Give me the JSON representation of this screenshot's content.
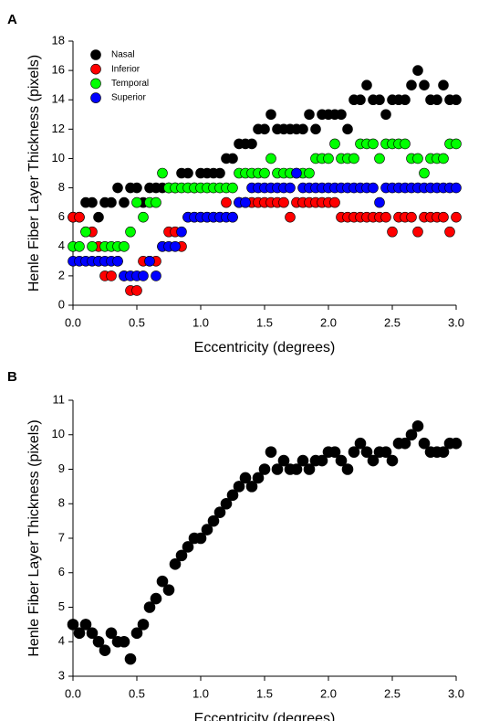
{
  "chart_data": [
    {
      "type": "scatter",
      "panel_label": "A",
      "xlabel": "Eccentricity (degrees)",
      "ylabel": "Henle Fiber Layer Thickness (pixels)",
      "xlim": [
        0,
        3
      ],
      "ylim": [
        0,
        18
      ],
      "xticks": [
        {
          "value": 0,
          "label": "0.0"
        },
        {
          "value": 0.5,
          "label": "0.5"
        },
        {
          "value": 1,
          "label": "1.0"
        },
        {
          "value": 1.5,
          "label": "1.5"
        },
        {
          "value": 2,
          "label": "2.0"
        },
        {
          "value": 2.5,
          "label": "2.5"
        },
        {
          "value": 3,
          "label": "3.0"
        }
      ],
      "yticks": [
        0,
        2,
        4,
        6,
        8,
        10,
        12,
        14,
        16,
        18
      ],
      "legend": "upper left",
      "x": [
        0,
        0.05,
        0.1,
        0.15,
        0.2,
        0.25,
        0.3,
        0.35,
        0.4,
        0.45,
        0.5,
        0.55,
        0.6,
        0.65,
        0.7,
        0.75,
        0.8,
        0.85,
        0.9,
        0.95,
        1,
        1.05,
        1.1,
        1.15,
        1.2,
        1.25,
        1.3,
        1.35,
        1.4,
        1.45,
        1.5,
        1.55,
        1.6,
        1.65,
        1.7,
        1.75,
        1.8,
        1.85,
        1.9,
        1.95,
        2,
        2.05,
        2.1,
        2.15,
        2.2,
        2.25,
        2.3,
        2.35,
        2.4,
        2.45,
        2.5,
        2.55,
        2.6,
        2.65,
        2.7,
        2.75,
        2.8,
        2.85,
        2.9,
        2.95,
        3
      ],
      "series": [
        {
          "name": "Nasal",
          "color": "#000000",
          "values": [
            6,
            6,
            7,
            7,
            6,
            7,
            7,
            8,
            7,
            8,
            8,
            7,
            8,
            8,
            8,
            8,
            8,
            9,
            9,
            8,
            9,
            9,
            9,
            9,
            10,
            10,
            11,
            11,
            11,
            12,
            12,
            13,
            12,
            12,
            12,
            12,
            12,
            13,
            12,
            13,
            13,
            13,
            13,
            12,
            14,
            14,
            15,
            14,
            14,
            13,
            14,
            14,
            14,
            15,
            16,
            15,
            14,
            14,
            15,
            14,
            14
          ]
        },
        {
          "name": "Inferior",
          "color": "#ff0000",
          "values": [
            6,
            6,
            5,
            5,
            4,
            2,
            2,
            3,
            2,
            1,
            1,
            3,
            3,
            3,
            4,
            5,
            5,
            4,
            6,
            6,
            6,
            6,
            6,
            6,
            7,
            6,
            7,
            7,
            7,
            7,
            7,
            7,
            7,
            7,
            6,
            7,
            7,
            7,
            7,
            7,
            7,
            7,
            6,
            6,
            6,
            6,
            6,
            6,
            6,
            6,
            5,
            6,
            6,
            6,
            5,
            6,
            6,
            6,
            6,
            5,
            6
          ]
        },
        {
          "name": "Temporal",
          "color": "#00ff00",
          "values": [
            4,
            4,
            5,
            4,
            3,
            4,
            4,
            4,
            4,
            5,
            7,
            6,
            7,
            7,
            9,
            8,
            8,
            8,
            8,
            8,
            8,
            8,
            8,
            8,
            8,
            8,
            9,
            9,
            9,
            9,
            9,
            10,
            9,
            9,
            9,
            9,
            9,
            9,
            10,
            10,
            10,
            11,
            10,
            10,
            10,
            11,
            11,
            11,
            10,
            11,
            11,
            11,
            11,
            10,
            10,
            9,
            10,
            10,
            10,
            11,
            11
          ]
        },
        {
          "name": "Superior",
          "color": "#0000ff",
          "values": [
            3,
            3,
            3,
            3,
            3,
            3,
            3,
            3,
            2,
            2,
            2,
            2,
            3,
            2,
            4,
            4,
            4,
            5,
            6,
            6,
            6,
            6,
            6,
            6,
            6,
            6,
            7,
            7,
            8,
            8,
            8,
            8,
            8,
            8,
            8,
            9,
            8,
            8,
            8,
            8,
            8,
            8,
            8,
            8,
            8,
            8,
            8,
            8,
            7,
            8,
            8,
            8,
            8,
            8,
            8,
            8,
            8,
            8,
            8,
            8,
            8
          ]
        }
      ]
    },
    {
      "type": "scatter",
      "panel_label": "B",
      "xlabel": "Eccentricity (degrees)",
      "ylabel": "Henle Fiber Layer Thickness (pixels)",
      "xlim": [
        0,
        3
      ],
      "ylim": [
        3,
        11
      ],
      "xticks": [
        {
          "value": 0,
          "label": "0.0"
        },
        {
          "value": 0.5,
          "label": "0.5"
        },
        {
          "value": 1,
          "label": "1.0"
        },
        {
          "value": 1.5,
          "label": "1.5"
        },
        {
          "value": 2,
          "label": "2.0"
        },
        {
          "value": 2.5,
          "label": "2.5"
        },
        {
          "value": 3,
          "label": "3.0"
        }
      ],
      "yticks": [
        3,
        4,
        5,
        6,
        7,
        8,
        9,
        10,
        11
      ],
      "x": [
        0,
        0.05,
        0.1,
        0.15,
        0.2,
        0.25,
        0.3,
        0.35,
        0.4,
        0.45,
        0.5,
        0.55,
        0.6,
        0.65,
        0.7,
        0.75,
        0.8,
        0.85,
        0.9,
        0.95,
        1,
        1.05,
        1.1,
        1.15,
        1.2,
        1.25,
        1.3,
        1.35,
        1.4,
        1.45,
        1.5,
        1.55,
        1.6,
        1.65,
        1.7,
        1.75,
        1.8,
        1.85,
        1.9,
        1.95,
        2,
        2.05,
        2.1,
        2.15,
        2.2,
        2.25,
        2.3,
        2.35,
        2.4,
        2.45,
        2.5,
        2.55,
        2.6,
        2.65,
        2.7,
        2.75,
        2.8,
        2.85,
        2.9,
        2.95,
        3
      ],
      "series": [
        {
          "color": "#000000",
          "values": [
            4.5,
            4.25,
            4.5,
            4.25,
            4,
            3.75,
            4.25,
            4,
            4,
            3.5,
            4.25,
            4.5,
            5,
            5.25,
            5.75,
            5.5,
            6.25,
            6.5,
            6.75,
            7,
            7,
            7.25,
            7.5,
            7.75,
            8,
            8.25,
            8.5,
            8.75,
            8.5,
            8.75,
            9,
            9.5,
            9,
            9.25,
            9,
            9,
            9.25,
            9,
            9.25,
            9.25,
            9.5,
            9.5,
            9.25,
            9,
            9.5,
            9.75,
            9.5,
            9.25,
            9.5,
            9.5,
            9.25,
            9.75,
            9.75,
            10,
            10.25,
            9.75,
            9.5,
            9.5,
            9.5,
            9.75,
            9.75
          ]
        }
      ]
    }
  ]
}
